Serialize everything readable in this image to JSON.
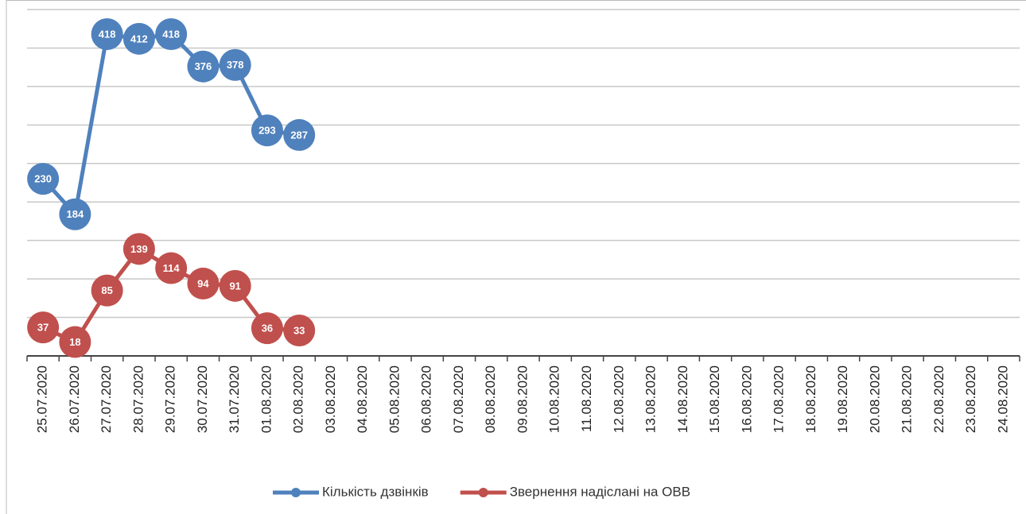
{
  "chart_data": {
    "type": "line",
    "categories": [
      "25.07.2020",
      "26.07.2020",
      "27.07.2020",
      "28.07.2020",
      "29.07.2020",
      "30.07.2020",
      "31.07.2020",
      "01.08.2020",
      "02.08.2020",
      "03.08.2020",
      "04.08.2020",
      "05.08.2020",
      "06.08.2020",
      "07.08.2020",
      "08.08.2020",
      "09.08.2020",
      "10.08.2020",
      "11.08.2020",
      "12.08.2020",
      "13.08.2020",
      "14.08.2020",
      "15.08.2020",
      "16.08.2020",
      "17.08.2020",
      "18.08.2020",
      "19.08.2020",
      "20.08.2020",
      "21.08.2020",
      "22.08.2020",
      "23.08.2020",
      "24.08.2020"
    ],
    "series": [
      {
        "name": "Кількість дзвінків",
        "color": "#4f81bd",
        "values": [
          230,
          184,
          418,
          412,
          418,
          376,
          378,
          293,
          287,
          null,
          null,
          null,
          null,
          null,
          null,
          null,
          null,
          null,
          null,
          null,
          null,
          null,
          null,
          null,
          null,
          null,
          null,
          null,
          null,
          null,
          null
        ]
      },
      {
        "name": "Звернення надіслані на ОВВ",
        "color": "#c0504d",
        "values": [
          37,
          18,
          85,
          139,
          114,
          94,
          91,
          36,
          33,
          null,
          null,
          null,
          null,
          null,
          null,
          null,
          null,
          null,
          null,
          null,
          null,
          null,
          null,
          null,
          null,
          null,
          null,
          null,
          null,
          null,
          null
        ]
      }
    ],
    "ylim": [
      0,
      450
    ],
    "yticks": [
      0,
      50,
      100,
      150,
      200,
      250,
      300,
      350,
      400,
      450
    ],
    "grid": true,
    "legend": "bottom"
  }
}
